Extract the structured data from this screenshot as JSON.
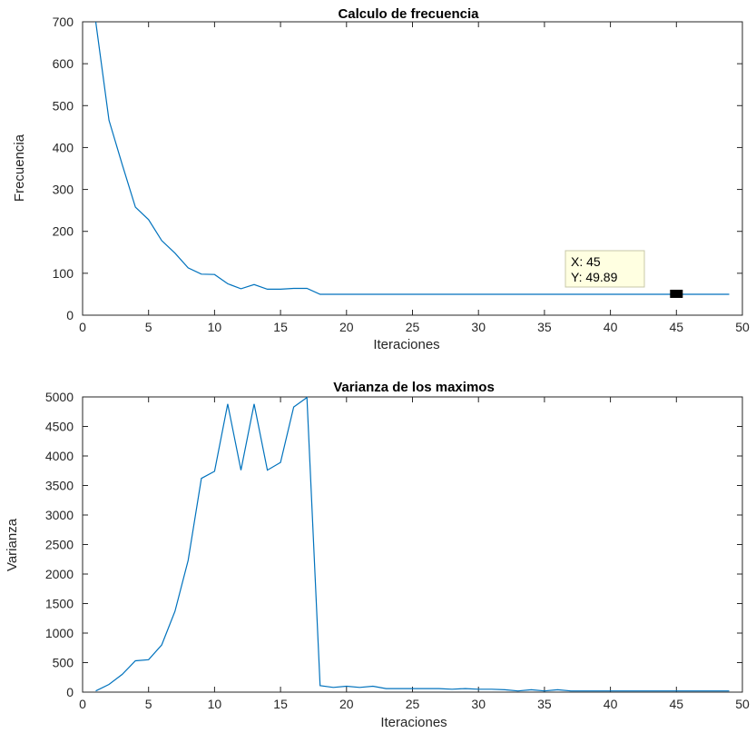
{
  "chart_data": [
    {
      "type": "line",
      "title": "Calculo de frecuencia",
      "xlabel": "Iteraciones",
      "ylabel": "Frecuencia",
      "xlim": [
        0,
        50
      ],
      "ylim": [
        0,
        700
      ],
      "xticks": [
        "0",
        "5",
        "10",
        "15",
        "20",
        "25",
        "30",
        "35",
        "40",
        "45",
        "50"
      ],
      "yticks": [
        "0",
        "100",
        "200",
        "300",
        "400",
        "500",
        "600",
        "700"
      ],
      "grid": false,
      "line_color": "#0072BD",
      "series": [
        {
          "x": [
            1,
            2,
            3,
            4,
            5,
            6,
            7,
            8,
            9,
            10,
            11,
            12,
            13,
            14,
            15,
            16,
            17,
            18,
            19,
            20,
            21,
            22,
            23,
            24,
            25,
            26,
            27,
            28,
            29,
            30,
            31,
            32,
            33,
            34,
            35,
            36,
            37,
            38,
            39,
            40,
            41,
            42,
            43,
            44,
            45,
            46,
            47,
            48,
            49
          ],
          "values": [
            700,
            465,
            360,
            258,
            228,
            178,
            148,
            113,
            98,
            97,
            75,
            63,
            73,
            62,
            62,
            64,
            64,
            49.9,
            49.9,
            49.9,
            49.9,
            49.9,
            49.9,
            49.9,
            49.9,
            49.9,
            49.9,
            49.9,
            49.9,
            49.9,
            49.9,
            49.9,
            49.9,
            49.9,
            49.9,
            49.9,
            49.9,
            49.9,
            49.9,
            49.9,
            49.9,
            49.9,
            49.9,
            49.9,
            49.89,
            49.9,
            49.9,
            49.9,
            49.9
          ]
        }
      ],
      "datatip": {
        "x": 45,
        "y": 49.89,
        "x_label": "X: 45",
        "y_label": "Y: 49.89"
      }
    },
    {
      "type": "line",
      "title": "Varianza de los maximos",
      "xlabel": "Iteraciones",
      "ylabel": "Varianza",
      "xlim": [
        0,
        50
      ],
      "ylim": [
        0,
        5000
      ],
      "xticks": [
        "0",
        "5",
        "10",
        "15",
        "20",
        "25",
        "30",
        "35",
        "40",
        "45",
        "50"
      ],
      "yticks": [
        "0",
        "500",
        "1000",
        "1500",
        "2000",
        "2500",
        "3000",
        "3500",
        "4000",
        "4500",
        "5000"
      ],
      "grid": false,
      "line_color": "#0072BD",
      "series": [
        {
          "x": [
            1,
            2,
            3,
            4,
            5,
            6,
            7,
            8,
            9,
            10,
            11,
            12,
            13,
            14,
            15,
            16,
            17,
            18,
            19,
            20,
            21,
            22,
            23,
            24,
            25,
            26,
            27,
            28,
            29,
            30,
            31,
            32,
            33,
            34,
            35,
            36,
            37,
            38,
            39,
            40,
            41,
            42,
            43,
            44,
            45,
            46,
            47,
            48,
            49
          ],
          "values": [
            20,
            130,
            300,
            530,
            550,
            800,
            1370,
            2230,
            3620,
            3740,
            4880,
            3760,
            4880,
            3760,
            3890,
            4830,
            4990,
            110,
            80,
            100,
            80,
            100,
            60,
            60,
            60,
            60,
            60,
            50,
            60,
            50,
            50,
            40,
            20,
            40,
            20,
            40,
            20,
            20,
            20,
            20,
            20,
            20,
            20,
            20,
            20,
            20,
            20,
            20,
            20
          ]
        }
      ]
    }
  ]
}
